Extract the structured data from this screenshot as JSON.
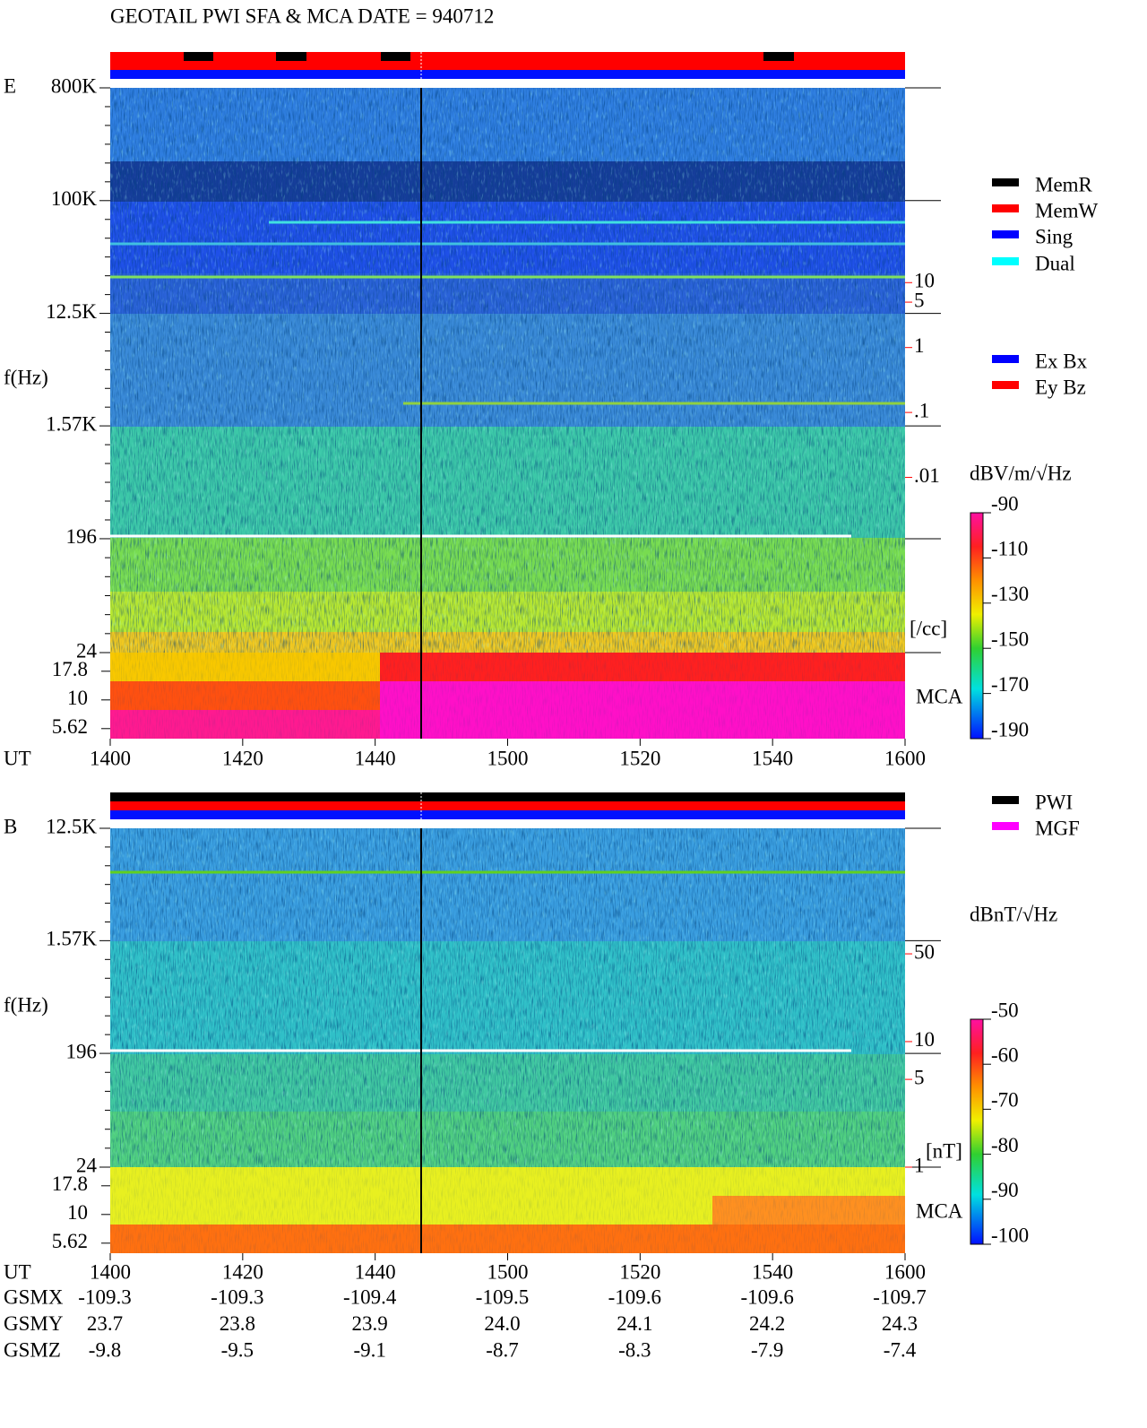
{
  "title": "GEOTAIL  PWI SFA & MCA   DATE = 940712",
  "chart_data": [
    {
      "type": "spectrogram",
      "panel_label": "E",
      "ylabel": "f(Hz)",
      "log": true,
      "ylim": [
        24,
        800000
      ],
      "yticks": [
        {
          "value": 800000,
          "label": "800K"
        },
        {
          "value": 100000,
          "label": "100K"
        },
        {
          "value": 12500,
          "label": "12.5K"
        },
        {
          "value": 1570,
          "label": "1.57K"
        },
        196,
        24
      ],
      "mca_label": "MCA",
      "mca_ticks": [
        17.8,
        10,
        5.62
      ],
      "xlabel": "UT",
      "categories": [
        "1400",
        "1420",
        "1440",
        "1500",
        "1520",
        "1540",
        "1600"
      ],
      "y2lim": [
        2e-05,
        10000
      ],
      "y2ticks": [
        10,
        5,
        1,
        {
          "value": 0.1,
          "label": ".1"
        },
        {
          "value": 0.01,
          "label": ".01"
        }
      ],
      "y2label": "[/cc]",
      "y2color": "#ff0000",
      "colorbar": {
        "label": "dBV/m/√Hz",
        "lim": [
          -190,
          -90
        ],
        "ticks": [
          -90,
          -110,
          -130,
          -150,
          -170,
          -190
        ]
      },
      "legend": [
        {
          "name": "MemR",
          "color": "#000000"
        },
        {
          "name": "MemW",
          "color": "#ff0000"
        },
        {
          "name": "Sing",
          "color": "#0000ff"
        },
        {
          "name": "Dual",
          "color": "#00ffff"
        },
        {
          "name": "Ex Bx",
          "color": "#0000ff"
        },
        {
          "name": "Ey Bz",
          "color": "#ff0000"
        }
      ]
    },
    {
      "type": "spectrogram",
      "panel_label": "B",
      "ylabel": "f(Hz)",
      "log": true,
      "ylim": [
        24,
        12500
      ],
      "yticks": [
        {
          "value": 12500,
          "label": "12.5K"
        },
        {
          "value": 1570,
          "label": "1.57K"
        },
        196,
        24
      ],
      "mca_label": "MCA",
      "mca_ticks": [
        17.8,
        10,
        5.62
      ],
      "xlabel": "UT",
      "categories": [
        "1400",
        "1420",
        "1440",
        "1500",
        "1520",
        "1540",
        "1600"
      ],
      "y2lim": [
        1,
        500
      ],
      "y2ticks": [
        50,
        10,
        5,
        1
      ],
      "y2label": "[nT]",
      "y2color": "#ff0000",
      "colorbar": {
        "label": "dBnT/√Hz",
        "lim": [
          -100,
          -50
        ],
        "ticks": [
          -50,
          -60,
          -70,
          -80,
          -90,
          -100
        ]
      },
      "legend": [
        {
          "name": "PWI",
          "color": "#000000"
        },
        {
          "name": "MGF",
          "color": "#ff00ff"
        }
      ]
    }
  ],
  "orbit": {
    "rows": [
      [
        "GSMX",
        "-109.3",
        "-109.3",
        "-109.4",
        "-109.5",
        "-109.6",
        "-109.6",
        "-109.7"
      ],
      [
        "GSMY",
        "23.7",
        "23.8",
        "23.9",
        "24.0",
        "24.1",
        "24.2",
        "24.3"
      ],
      [
        "GSMZ",
        "-9.8",
        "-9.5",
        "-9.1",
        "-8.7",
        "-8.3",
        "-7.9",
        "-7.4"
      ]
    ]
  }
}
